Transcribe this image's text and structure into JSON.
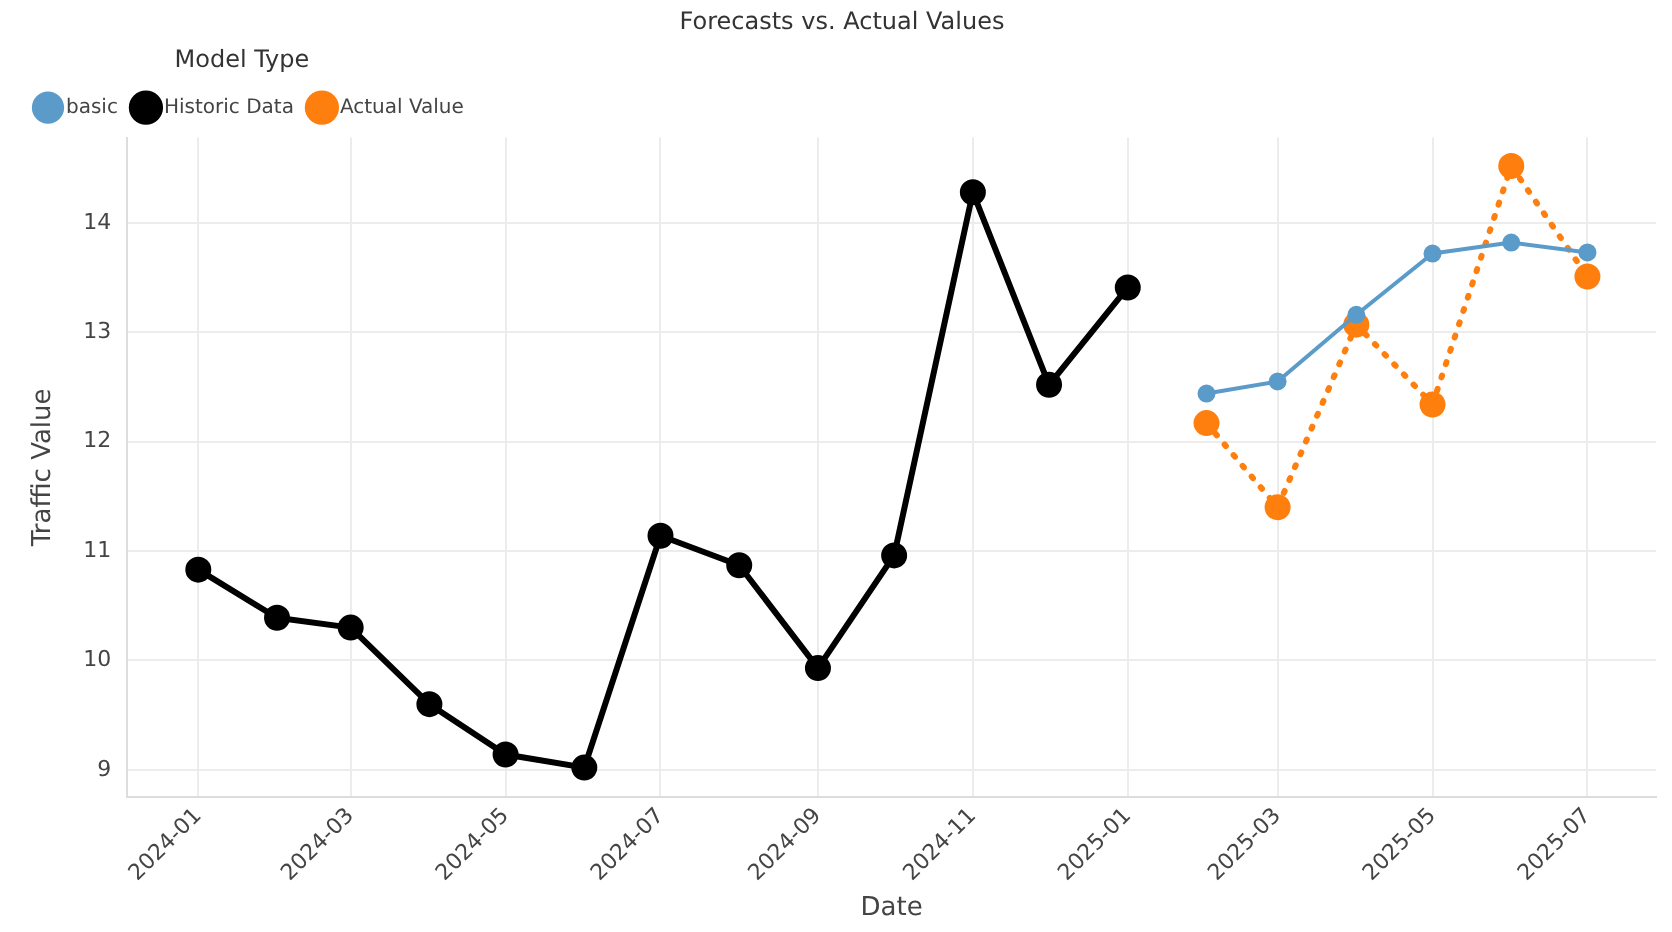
{
  "chart_data": {
    "type": "line",
    "title": "Forecasts vs. Actual Values",
    "xlabel": "Date",
    "ylabel": "Traffic Value",
    "legend_title": "Model Type",
    "xlim": [
      "2023-12-04",
      "2025-07-28"
    ],
    "xticks": [
      {
        "value": "2024-01",
        "label": "2024-01"
      },
      {
        "value": "2024-03",
        "label": "2024-03"
      },
      {
        "value": "2024-05",
        "label": "2024-05"
      },
      {
        "value": "2024-07",
        "label": "2024-07"
      },
      {
        "value": "2024-09",
        "label": "2024-09"
      },
      {
        "value": "2024-11",
        "label": "2024-11"
      },
      {
        "value": "2025-01",
        "label": "2025-01"
      },
      {
        "value": "2025-03",
        "label": "2025-03"
      },
      {
        "value": "2025-05",
        "label": "2025-05"
      },
      {
        "value": "2025-07",
        "label": "2025-07"
      }
    ],
    "ylim": [
      8.75,
      14.78
    ],
    "yticks": [
      9,
      10,
      11,
      12,
      13,
      14
    ],
    "grid": true,
    "legend": "top left",
    "marker": "circle",
    "series": [
      {
        "name": "basic",
        "color": "#5a9bc9",
        "line_style": "solid",
        "x": [
          "2025-02",
          "2025-03",
          "2025-04",
          "2025-05",
          "2025-06",
          "2025-07"
        ],
        "values": [
          12.44,
          12.55,
          13.16,
          13.72,
          13.82,
          13.73
        ]
      },
      {
        "name": "Historic Data",
        "color": "#000000",
        "line_style": "solid",
        "x": [
          "2024-01",
          "2024-02",
          "2024-03",
          "2024-04",
          "2024-05",
          "2024-06",
          "2024-07",
          "2024-08",
          "2024-09",
          "2024-10",
          "2024-11",
          "2024-12",
          "2025-01"
        ],
        "values": [
          10.83,
          10.39,
          10.3,
          9.6,
          9.14,
          9.02,
          11.14,
          10.87,
          9.93,
          10.96,
          14.28,
          12.52,
          13.41
        ]
      },
      {
        "name": "Actual Value",
        "color": "#ff7f0e",
        "line_style": "dotted",
        "x": [
          "2025-02",
          "2025-03",
          "2025-04",
          "2025-05",
          "2025-06",
          "2025-07"
        ],
        "values": [
          12.17,
          11.4,
          13.07,
          12.34,
          14.52,
          13.51
        ]
      }
    ]
  }
}
